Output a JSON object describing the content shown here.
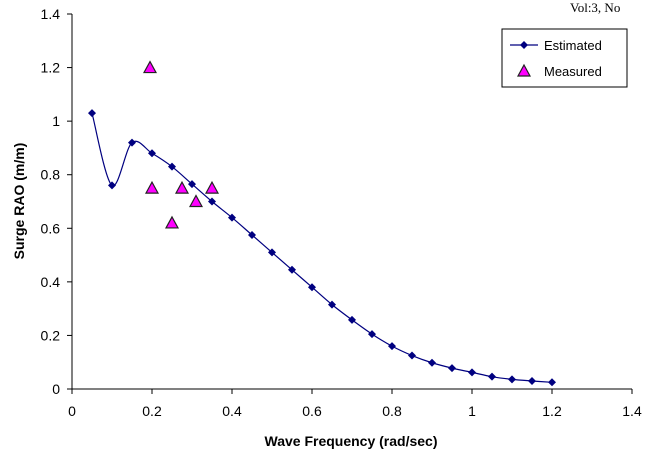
{
  "header_fragment": "Vol:3, No",
  "chart_data": {
    "type": "line",
    "title": "",
    "xlabel": "Wave Frequency (rad/sec)",
    "ylabel": "Surge RAO (m/m)",
    "xlim": [
      0,
      1.4
    ],
    "ylim": [
      0,
      1.4
    ],
    "x_ticks": [
      "0",
      "0.2",
      "0.4",
      "0.6",
      "0.8",
      "1",
      "1.2",
      "1.4"
    ],
    "y_ticks": [
      "0",
      "0.2",
      "0.4",
      "0.6",
      "0.8",
      "1",
      "1.2",
      "1.4"
    ],
    "grid": false,
    "legend_placement": "top-right",
    "series": [
      {
        "name": "Estimated",
        "style": "line-diamond",
        "color": "#000080",
        "x": [
          0.05,
          0.1,
          0.15,
          0.2,
          0.25,
          0.3,
          0.35,
          0.4,
          0.45,
          0.5,
          0.55,
          0.6,
          0.65,
          0.7,
          0.75,
          0.8,
          0.85,
          0.9,
          0.95,
          1.0,
          1.05,
          1.1,
          1.15,
          1.2
        ],
        "y": [
          1.03,
          0.76,
          0.92,
          0.88,
          0.83,
          0.765,
          0.7,
          0.64,
          0.575,
          0.51,
          0.445,
          0.38,
          0.315,
          0.258,
          0.205,
          0.16,
          0.125,
          0.098,
          0.078,
          0.062,
          0.046,
          0.036,
          0.03,
          0.025
        ]
      },
      {
        "name": "Measured",
        "style": "triangle",
        "color": "#ff00ff",
        "x": [
          0.195,
          0.2,
          0.25,
          0.275,
          0.31,
          0.35
        ],
        "y": [
          1.2,
          0.75,
          0.62,
          0.75,
          0.7,
          0.75
        ]
      }
    ]
  }
}
